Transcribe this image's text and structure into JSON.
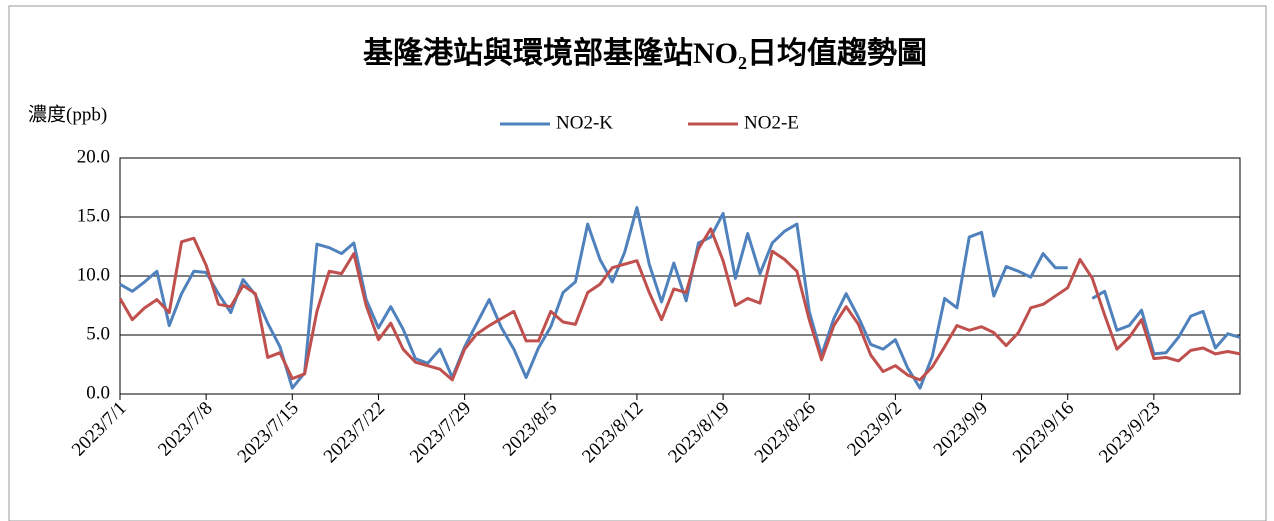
{
  "chart_data": {
    "type": "line",
    "title": "基隆港站與環境部基隆站NO₂日均值趨勢圖",
    "y_label": "濃度(ppb)",
    "categories": [
      "2023/7/1",
      null,
      null,
      null,
      null,
      null,
      null,
      "2023/7/8",
      null,
      null,
      null,
      null,
      null,
      null,
      "2023/7/15",
      null,
      null,
      null,
      null,
      null,
      null,
      "2023/7/22",
      null,
      null,
      null,
      null,
      null,
      null,
      "2023/7/29",
      null,
      null,
      null,
      null,
      null,
      null,
      "2023/8/5",
      null,
      null,
      null,
      null,
      null,
      null,
      "2023/8/12",
      null,
      null,
      null,
      null,
      null,
      null,
      "2023/8/19",
      null,
      null,
      null,
      null,
      null,
      null,
      "2023/8/26",
      null,
      null,
      null,
      null,
      null,
      null,
      "2023/9/2",
      null,
      null,
      null,
      null,
      null,
      null,
      "2023/9/9",
      null,
      null,
      null,
      null,
      null,
      null,
      "2023/9/16",
      null,
      null,
      null,
      null,
      null,
      null,
      "2023/9/23",
      null,
      null,
      null,
      null,
      null,
      null,
      null
    ],
    "series": [
      {
        "name": "NO2-K",
        "color": "#4f81bd",
        "values": [
          9.3,
          8.7,
          9.5,
          10.4,
          5.8,
          8.5,
          10.4,
          10.3,
          8.5,
          6.9,
          9.7,
          8.4,
          6.0,
          4.0,
          0.5,
          1.8,
          12.7,
          12.4,
          11.9,
          12.8,
          8.0,
          5.6,
          7.4,
          5.5,
          3.0,
          2.6,
          3.8,
          1.4,
          4.0,
          6.0,
          8.0,
          5.6,
          3.8,
          1.4,
          3.9,
          5.7,
          8.6,
          9.5,
          14.4,
          11.4,
          9.5,
          12.0,
          15.8,
          11.0,
          7.8,
          11.1,
          7.9,
          12.8,
          13.3,
          15.3,
          9.8,
          13.6,
          10.2,
          12.8,
          13.8,
          14.4,
          7.0,
          3.3,
          6.4,
          8.5,
          6.5,
          4.2,
          3.8,
          4.6,
          2.2,
          0.5,
          3.2,
          8.1,
          7.3,
          13.3,
          13.7,
          8.3,
          10.8,
          10.4,
          9.9,
          11.9,
          10.7,
          10.7,
          null,
          8.1,
          8.7,
          5.4,
          5.8,
          7.1,
          3.4,
          3.5,
          4.8,
          6.6,
          7.0,
          3.9,
          5.1,
          4.8
        ]
      },
      {
        "name": "NO2-E",
        "color": "#c0504d",
        "values": [
          8.1,
          6.3,
          7.3,
          8.0,
          6.9,
          12.9,
          13.2,
          10.9,
          7.6,
          7.4,
          9.2,
          8.5,
          3.1,
          3.5,
          1.3,
          1.7,
          7.0,
          10.4,
          10.2,
          11.9,
          7.5,
          4.6,
          6.0,
          3.8,
          2.7,
          2.4,
          2.1,
          1.2,
          3.8,
          5.1,
          5.8,
          6.4,
          7.0,
          4.5,
          4.5,
          7.0,
          6.1,
          5.9,
          8.6,
          9.3,
          10.7,
          11.0,
          11.3,
          8.6,
          6.3,
          8.9,
          8.6,
          12.3,
          14.0,
          11.3,
          7.5,
          8.1,
          7.7,
          12.1,
          11.4,
          10.4,
          6.3,
          2.9,
          5.8,
          7.4,
          5.9,
          3.3,
          1.9,
          2.4,
          1.6,
          1.2,
          2.3,
          4.0,
          5.8,
          5.4,
          5.7,
          5.2,
          4.1,
          5.2,
          7.3,
          7.6,
          8.3,
          9.0,
          11.4,
          9.8,
          6.7,
          3.8,
          4.8,
          6.3,
          3.0,
          3.1,
          2.8,
          3.7,
          3.9,
          3.4,
          3.6,
          3.4
        ]
      }
    ],
    "ylim": [
      0,
      20
    ],
    "yticks": [
      {
        "value": 0,
        "label": "0.0"
      },
      {
        "value": 5,
        "label": "5.0"
      },
      {
        "value": 10,
        "label": "10.0"
      },
      {
        "value": 15,
        "label": "15.0"
      },
      {
        "value": 20,
        "label": "20.0"
      }
    ],
    "grid": true,
    "legend": "top"
  }
}
